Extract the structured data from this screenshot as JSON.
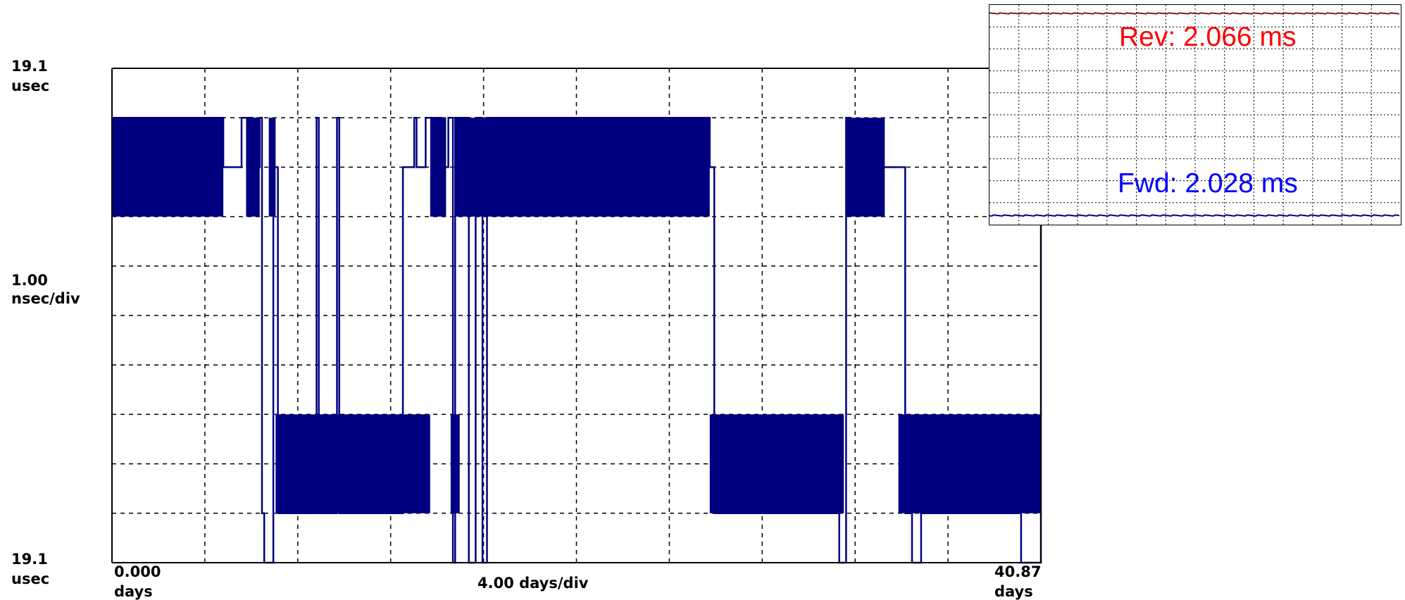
{
  "chart_data": [
    {
      "type": "line",
      "step": true,
      "title": "",
      "y_top_label": [
        "19.1",
        "usec"
      ],
      "y_mid_label": [
        "1.00",
        "nsec/div"
      ],
      "y_bottom_label": [
        "19.1",
        "usec"
      ],
      "x_start_label": [
        "0.000",
        "days"
      ],
      "x_center_label": "4.00 days/div",
      "x_end_label": [
        "40.87",
        "days"
      ],
      "xlim": [
        0,
        40.87
      ],
      "ylim": [
        -5,
        5
      ],
      "grid": true,
      "series": [
        {
          "color": "#000080",
          "x": [
            0,
            4.9,
            5.7,
            6.2,
            6.5,
            6.6,
            6.7,
            7.1,
            7.3,
            9.0,
            9.1,
            9.9,
            10.0,
            12.8,
            13.3,
            13.4,
            13.8,
            14.1,
            14.2,
            14.5,
            14.8,
            15.0,
            15.1,
            15.7,
            16.0,
            16.3,
            16.5,
            26.3,
            26.5,
            32.0,
            32.3,
            32.5,
            34.9,
            35.2,
            35.6,
            40.0,
            40.87
          ],
          "y": [
            4,
            3,
            4,
            3,
            4,
            -4,
            -5,
            3,
            -4,
            4,
            -4,
            4,
            -4,
            3,
            4,
            3,
            4,
            3,
            4,
            3,
            4,
            -5,
            4,
            -5,
            4,
            -5,
            4,
            3,
            -4,
            -5,
            4,
            3,
            -4,
            -5,
            -4,
            -5,
            4
          ],
          "bands": [
            [
              0,
              4.9,
              2,
              4
            ],
            [
              5.9,
              6.5,
              2,
              4
            ],
            [
              6.9,
              7.2,
              2,
              4
            ],
            [
              7.2,
              14.0,
              -4,
              -2
            ],
            [
              14.0,
              14.7,
              2,
              4
            ],
            [
              14.9,
              15.3,
              -4,
              -2
            ],
            [
              15.1,
              26.3,
              2,
              4
            ],
            [
              26.3,
              32.2,
              -4,
              -2
            ],
            [
              32.3,
              34.0,
              2,
              4
            ],
            [
              34.6,
              40.87,
              -4,
              -2
            ]
          ]
        }
      ]
    },
    {
      "type": "line",
      "title": "",
      "grid": true,
      "series": [
        {
          "name": "Rev: 2.066 ms",
          "color": "#8b1a1a",
          "text_color": "#ff0000",
          "value_ms": 2.066
        },
        {
          "name": "Fwd: 2.028 ms",
          "color": "#000080",
          "text_color": "#0000ff",
          "value_ms": 2.028
        }
      ]
    }
  ]
}
